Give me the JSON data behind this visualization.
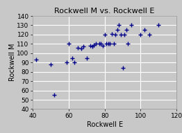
{
  "title": "Rockwell M vs. Rockwell E",
  "xlabel": "Rockwell E",
  "ylabel": "Rockwell M",
  "xlim": [
    40,
    120
  ],
  "ylim": [
    40,
    140
  ],
  "xticks": [
    40,
    60,
    80,
    100,
    120
  ],
  "yticks": [
    40,
    50,
    60,
    70,
    80,
    90,
    100,
    110,
    120,
    130,
    140
  ],
  "scatter_x": [
    42,
    50,
    52,
    59,
    60,
    62,
    63,
    65,
    67,
    68,
    70,
    72,
    73,
    74,
    75,
    77,
    78,
    79,
    80,
    81,
    82,
    83,
    84,
    85,
    86,
    87,
    88,
    89,
    90,
    91,
    92,
    93,
    95,
    100,
    102,
    105,
    110
  ],
  "scatter_y": [
    93,
    88,
    55,
    90,
    110,
    95,
    90,
    106,
    105,
    107,
    95,
    108,
    107,
    109,
    110,
    110,
    110,
    108,
    120,
    110,
    110,
    110,
    121,
    110,
    120,
    125,
    130,
    120,
    84,
    120,
    125,
    110,
    130,
    120,
    125,
    120,
    130
  ],
  "marker_color": "#00008B",
  "marker": "+",
  "marker_size": 18,
  "marker_lw": 1.0,
  "bg_color": "#C8C8C8",
  "plot_bg_color": "#C8C8C8",
  "title_fontsize": 8,
  "label_fontsize": 7,
  "tick_fontsize": 6.5,
  "grid_color": "#FFFFFF",
  "grid_lw": 0.8
}
